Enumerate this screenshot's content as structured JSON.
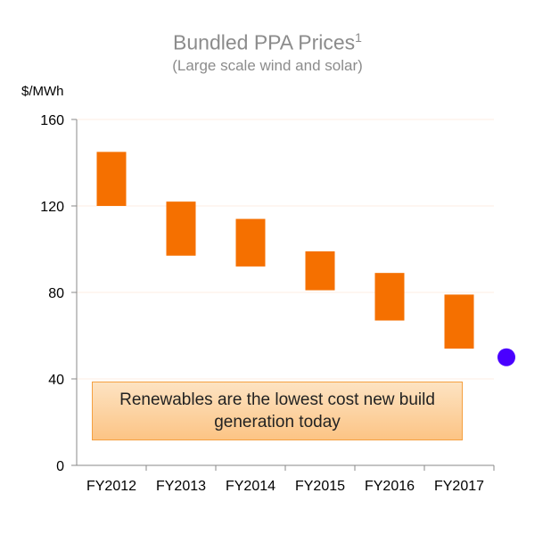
{
  "chart_data": {
    "type": "floating-bar",
    "title": "Bundled PPA Prices",
    "title_superscript": "1",
    "subtitle": "(Large scale wind and solar)",
    "ylabel": "$/MWh",
    "ylim": [
      0,
      160
    ],
    "yticks": [
      0,
      40,
      80,
      120,
      160
    ],
    "grid": true,
    "categories": [
      "FY2012",
      "FY2013",
      "FY2014",
      "FY2015",
      "FY2016",
      "FY2017"
    ],
    "ranges": [
      [
        120,
        145
      ],
      [
        97,
        122
      ],
      [
        92,
        114
      ],
      [
        81,
        99
      ],
      [
        67,
        89
      ],
      [
        54,
        79
      ]
    ],
    "marker": {
      "value": 50,
      "color": "#4a00ff"
    },
    "annotation": "Renewables are the lowest cost new build generation today",
    "bar_color": "#f57000"
  }
}
